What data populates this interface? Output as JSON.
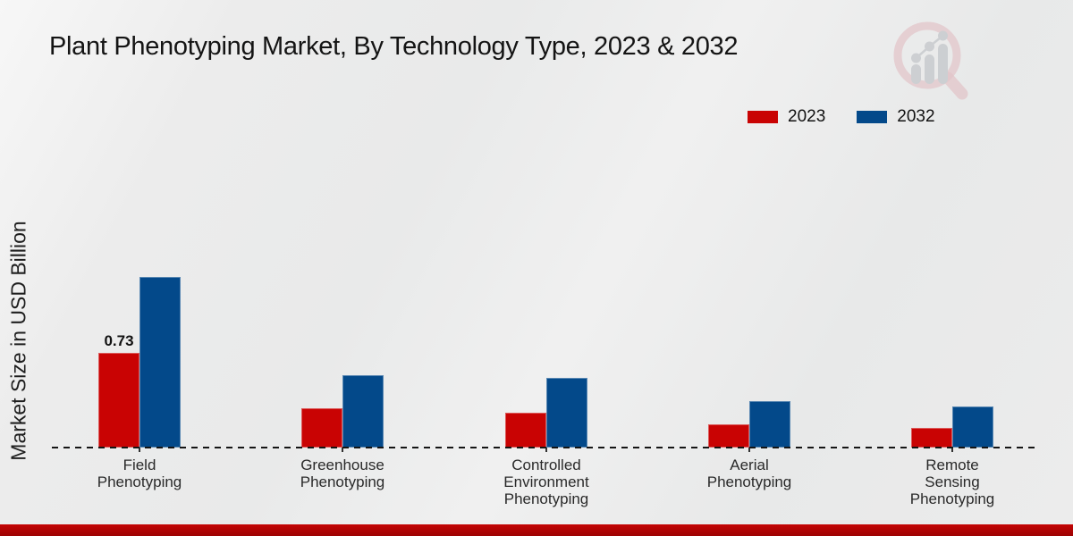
{
  "page": {
    "title": "Plant Phenotyping Market, By Technology Type, 2023 & 2032",
    "ylabel": "Market Size in USD Billion"
  },
  "colors": {
    "series_2023": "#c90303",
    "series_2032": "#03498a",
    "footer_accent": "#b30404",
    "background": "#ececec"
  },
  "chart_data": {
    "type": "bar",
    "title": "Plant Phenotyping Market, By Technology Type, 2023 & 2032",
    "ylabel": "Market Size in USD Billion",
    "categories": [
      "Field Phenotyping",
      "Greenhouse Phenotyping",
      "Controlled Environment Phenotyping",
      "Aerial Phenotyping",
      "Remote Sensing Phenotyping"
    ],
    "category_lines": [
      "Field\nPhenotyping",
      "Greenhouse\nPhenotyping",
      "Controlled\nEnvironment\nPhenotyping",
      "Aerial\nPhenotyping",
      "Remote\nSensing\nPhenotyping"
    ],
    "series": [
      {
        "name": "2023",
        "color": "#c90303",
        "values": [
          0.73,
          0.3,
          0.27,
          0.18,
          0.15
        ]
      },
      {
        "name": "2032",
        "color": "#03498a",
        "values": [
          1.32,
          0.56,
          0.54,
          0.36,
          0.32
        ]
      }
    ],
    "annotations": [
      {
        "series_index": 0,
        "category_index": 0,
        "text": "0.73"
      }
    ],
    "ylim": [
      0,
      1.4
    ],
    "grid": false,
    "baseline_style": "dashed",
    "legend_position": "top-right"
  }
}
